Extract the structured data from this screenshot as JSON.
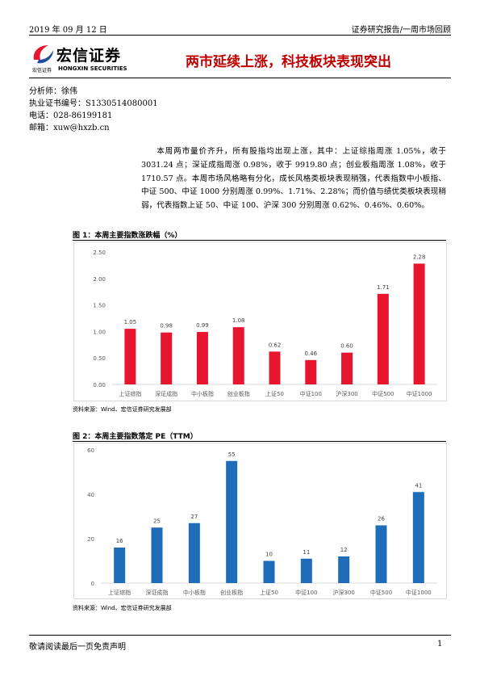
{
  "header": {
    "date": "2019 年 09 月 12 日",
    "report_type": "证券研究报告/一周市场回顾"
  },
  "logo": {
    "name_cn": "宏信证券",
    "name_en": "HONGXIN SECURITIES",
    "small_cn": "宏信证券"
  },
  "title": "两市延续上涨，科技板块表现突出",
  "analyst": {
    "name_line": "分析师：徐伟",
    "license_line": "执业证书编号：S1330514080001",
    "phone_line": "电话：028-86199181",
    "email_line": "邮箱：xuw@hxzb.cn"
  },
  "summary": "本周两市量价齐升，所有股指均出现上涨，其中：上证综指周涨 1.05%，收于 3031.24 点；深证成指周涨 0.98%，收于 9919.80 点；创业板指周涨 1.08%，收于 1710.57 点。本周市场风格略有分化，成长风格类板块表现稍强，代表指数中小板指、中证 500、中证 1000 分别周涨 0.99%、1.71%、2.28%；而价值与绩优类板块表现稍弱，代表指数上证 50、中证 100、沪深 300 分别周涨 0.62%、0.46%、0.60%。",
  "figures": [
    {
      "title": "图 1：本周主要指数涨跌幅（%）",
      "source": "资料来源：Wind、宏信证券研究发展部"
    },
    {
      "title": "图 2：本周主要指数落定 PE（TTM）",
      "source": "资料来源：Wind、宏信证券研究发展部"
    }
  ],
  "chart_data": [
    {
      "type": "bar",
      "categories": [
        "上证综指",
        "深证成指",
        "中小板指",
        "创业板指",
        "上证50",
        "中证100",
        "沪深300",
        "中证500",
        "中证1000"
      ],
      "values": [
        1.05,
        0.98,
        0.99,
        1.08,
        0.62,
        0.46,
        0.6,
        1.71,
        2.28
      ],
      "value_labels": [
        "1.05",
        "0.98",
        "0.99",
        "1.08",
        "0.62",
        "0.46",
        "0.60",
        "1.71",
        "2.28"
      ],
      "yticks": [
        "0.00",
        "0.50",
        "1.00",
        "1.50",
        "2.00",
        "2.50"
      ],
      "ylim": [
        0,
        2.5
      ],
      "color": "#e8152f",
      "grid": false
    },
    {
      "type": "bar",
      "categories": [
        "上证综指",
        "深证成指",
        "中小板指",
        "创业板指",
        "上证50",
        "中证100",
        "沪深300",
        "中证500",
        "中证1000"
      ],
      "values": [
        16,
        25,
        27,
        55,
        10,
        11,
        12,
        26,
        41
      ],
      "value_labels": [
        "16",
        "25",
        "27",
        "55",
        "10",
        "11",
        "12",
        "26",
        "41"
      ],
      "yticks": [
        "0",
        "20",
        "40",
        "60"
      ],
      "ylim": [
        0,
        60
      ],
      "color": "#1f6db8",
      "grid": false
    }
  ],
  "footer": {
    "disclaimer": "敬请阅读最后一页免责声明",
    "page": "1"
  }
}
